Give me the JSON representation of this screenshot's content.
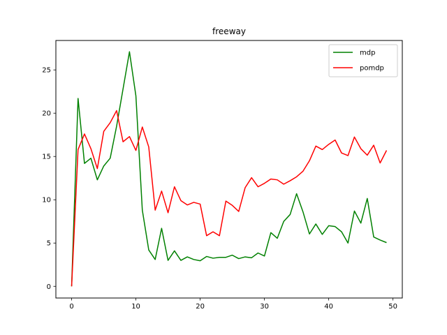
{
  "chart_data": {
    "type": "line",
    "title": "freeway",
    "xlabel": "",
    "ylabel": "",
    "xlim": [
      -2.45,
      51.45
    ],
    "ylim": [
      -1.35,
      28.4
    ],
    "xticks": [
      0,
      10,
      20,
      30,
      40,
      50
    ],
    "yticks": [
      0,
      5,
      10,
      15,
      20,
      25
    ],
    "grid": false,
    "legend_position": "top-right",
    "x": [
      0,
      1,
      2,
      3,
      4,
      5,
      6,
      7,
      8,
      9,
      10,
      11,
      12,
      13,
      14,
      15,
      16,
      17,
      18,
      19,
      20,
      21,
      22,
      23,
      24,
      25,
      26,
      27,
      28,
      29,
      30,
      31,
      32,
      33,
      34,
      35,
      36,
      37,
      38,
      39,
      40,
      41,
      42,
      43,
      44,
      45,
      46,
      47,
      48,
      49
    ],
    "series": [
      {
        "name": "mdp",
        "color": "#008000",
        "values": [
          0,
          21.7,
          14.2,
          14.8,
          12.3,
          13.9,
          14.8,
          18.5,
          22.8,
          27.1,
          22.0,
          8.8,
          4.2,
          3.1,
          6.7,
          3.0,
          4.1,
          3.0,
          3.4,
          3.1,
          2.95,
          3.45,
          3.25,
          3.35,
          3.35,
          3.6,
          3.2,
          3.4,
          3.3,
          3.85,
          3.5,
          6.2,
          5.55,
          7.5,
          8.3,
          10.7,
          8.6,
          6.05,
          7.2,
          6.0,
          7.0,
          6.9,
          6.3,
          5.0,
          8.7,
          7.3,
          10.15,
          5.7,
          5.35,
          5.05
        ]
      },
      {
        "name": "pomdp",
        "color": "#ff0000",
        "values": [
          0,
          15.8,
          17.6,
          15.9,
          13.6,
          17.9,
          18.9,
          20.3,
          16.7,
          17.3,
          15.7,
          18.4,
          16.1,
          8.8,
          11.0,
          8.5,
          11.5,
          9.9,
          9.4,
          9.7,
          9.5,
          5.85,
          6.3,
          5.85,
          9.85,
          9.35,
          8.65,
          11.4,
          12.55,
          11.5,
          11.9,
          12.4,
          12.3,
          11.8,
          12.2,
          12.65,
          13.3,
          14.5,
          16.2,
          15.8,
          16.4,
          16.9,
          15.4,
          15.1,
          17.25,
          15.9,
          15.15,
          16.3,
          14.25,
          15.7
        ]
      }
    ]
  }
}
